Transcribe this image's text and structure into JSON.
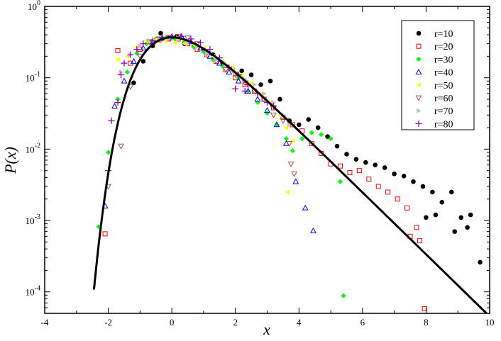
{
  "chart_data": {
    "type": "scatter",
    "title": "",
    "xlabel": "x",
    "ylabel": "P(x)",
    "xlim": [
      -4,
      10
    ],
    "ylim": [
      5e-05,
      1
    ],
    "yscale": "log",
    "grid": false,
    "legend_position": "top-right",
    "x_ticks": [
      -4,
      -2,
      0,
      2,
      4,
      6,
      8,
      10
    ],
    "x_tick_labels": [
      "-4",
      "-2",
      "0",
      "2",
      "4",
      "6",
      "8",
      "10"
    ],
    "y_ticks": [
      {
        "value": 1,
        "base": "10",
        "exp": "0"
      },
      {
        "value": 0.1,
        "base": "10",
        "exp": "-1"
      },
      {
        "value": 0.01,
        "base": "10",
        "exp": "-2"
      },
      {
        "value": 0.001,
        "base": "10",
        "exp": "-3"
      },
      {
        "value": 0.0001,
        "base": "10",
        "exp": "-4"
      }
    ],
    "series": [
      {
        "name": "r=10",
        "marker": "circle-filled",
        "color": "#000000",
        "points": [
          [
            -1.2,
            0.085
          ],
          [
            -0.9,
            0.17
          ],
          [
            -0.6,
            0.28
          ],
          [
            -0.35,
            0.42
          ],
          [
            -0.1,
            0.36
          ],
          [
            0.15,
            0.38
          ],
          [
            0.4,
            0.3
          ],
          [
            0.7,
            0.28
          ],
          [
            1.0,
            0.25
          ],
          [
            1.3,
            0.21
          ],
          [
            1.6,
            0.16
          ],
          [
            1.9,
            0.135
          ],
          [
            2.2,
            0.125
          ],
          [
            2.5,
            0.11
          ],
          [
            2.8,
            0.08
          ],
          [
            3.1,
            0.09
          ],
          [
            3.4,
            0.05
          ],
          [
            3.7,
            0.025
          ],
          [
            4.0,
            0.022
          ],
          [
            4.3,
            0.026
          ],
          [
            4.6,
            0.02
          ],
          [
            4.9,
            0.015
          ],
          [
            5.2,
            0.011
          ],
          [
            5.5,
            0.0085
          ],
          [
            5.8,
            0.0072
          ],
          [
            6.1,
            0.0065
          ],
          [
            6.4,
            0.006
          ],
          [
            6.7,
            0.0055
          ],
          [
            7.0,
            0.0045
          ],
          [
            7.3,
            0.0042
          ],
          [
            7.6,
            0.0035
          ],
          [
            7.9,
            0.003
          ],
          [
            8.2,
            0.0025
          ],
          [
            8.5,
            0.0018
          ],
          [
            8.8,
            0.0025
          ],
          [
            9.1,
            0.0011
          ],
          [
            9.4,
            0.0012
          ],
          [
            8.9,
            0.0007
          ],
          [
            9.3,
            0.0008
          ],
          [
            9.7,
            0.00026
          ],
          [
            8.0,
            0.0011
          ],
          [
            8.3,
            0.0012
          ]
        ]
      },
      {
        "name": "r=20",
        "marker": "square-open",
        "color": "#ff0000",
        "points": [
          [
            -2.1,
            0.00065
          ],
          [
            -1.7,
            0.24
          ],
          [
            -1.3,
            0.16
          ],
          [
            -1.0,
            0.25
          ],
          [
            -0.7,
            0.32
          ],
          [
            -0.4,
            0.34
          ],
          [
            -0.1,
            0.35
          ],
          [
            0.2,
            0.35
          ],
          [
            0.5,
            0.3
          ],
          [
            0.8,
            0.25
          ],
          [
            1.1,
            0.21
          ],
          [
            1.4,
            0.17
          ],
          [
            1.7,
            0.13
          ],
          [
            2.0,
            0.1
          ],
          [
            2.3,
            0.08
          ],
          [
            2.6,
            0.065
          ],
          [
            2.9,
            0.05
          ],
          [
            3.2,
            0.038
          ],
          [
            3.5,
            0.028
          ],
          [
            3.8,
            0.022
          ],
          [
            4.1,
            0.018
          ],
          [
            4.4,
            0.012
          ],
          [
            4.7,
            0.0087
          ],
          [
            5.0,
            0.0062
          ],
          [
            5.3,
            0.0058
          ],
          [
            5.6,
            0.0047
          ],
          [
            5.9,
            0.005
          ],
          [
            6.2,
            0.0038
          ],
          [
            6.5,
            0.003
          ],
          [
            6.8,
            0.0025
          ],
          [
            7.1,
            0.002
          ],
          [
            7.4,
            0.0015
          ],
          [
            7.7,
            0.0008
          ],
          [
            7.5,
            0.0006
          ],
          [
            7.8,
            0.00052
          ],
          [
            7.95,
            5.8e-05
          ]
        ]
      },
      {
        "name": "r=30",
        "marker": "diamond-filled",
        "color": "#00ff00",
        "points": [
          [
            -2.3,
            0.00082
          ],
          [
            -2.0,
            0.009
          ],
          [
            -1.7,
            0.05
          ],
          [
            -1.4,
            0.12
          ],
          [
            -1.1,
            0.22
          ],
          [
            -0.8,
            0.3
          ],
          [
            -0.5,
            0.35
          ],
          [
            -0.2,
            0.36
          ],
          [
            0.1,
            0.35
          ],
          [
            0.4,
            0.32
          ],
          [
            0.7,
            0.27
          ],
          [
            1.0,
            0.23
          ],
          [
            1.3,
            0.18
          ],
          [
            1.6,
            0.145
          ],
          [
            1.9,
            0.13
          ],
          [
            2.1,
            0.1
          ],
          [
            2.4,
            0.065
          ],
          [
            2.7,
            0.045
          ],
          [
            3.0,
            0.032
          ],
          [
            3.3,
            0.022
          ],
          [
            3.6,
            0.014
          ],
          [
            3.8,
            0.0095
          ],
          [
            4.1,
            0.014
          ],
          [
            4.4,
            0.017
          ],
          [
            4.7,
            0.016
          ],
          [
            5.0,
            0.014
          ],
          [
            5.3,
            0.0035
          ],
          [
            5.4,
            8.8e-05
          ]
        ]
      },
      {
        "name": "r=40",
        "marker": "triangle-up-open",
        "color": "#0000ff",
        "points": [
          [
            -2.1,
            0.0016
          ],
          [
            -1.8,
            0.04
          ],
          [
            -1.5,
            0.09
          ],
          [
            -1.2,
            0.17
          ],
          [
            -0.9,
            0.26
          ],
          [
            -0.6,
            0.32
          ],
          [
            -0.3,
            0.36
          ],
          [
            0.0,
            0.38
          ],
          [
            0.3,
            0.38
          ],
          [
            0.6,
            0.32
          ],
          [
            0.9,
            0.26
          ],
          [
            1.2,
            0.2
          ],
          [
            1.5,
            0.16
          ],
          [
            1.8,
            0.12
          ],
          [
            2.1,
            0.09
          ],
          [
            2.4,
            0.065
          ],
          [
            2.7,
            0.05
          ],
          [
            3.0,
            0.035
          ],
          [
            3.3,
            0.022
          ],
          [
            3.6,
            0.012
          ],
          [
            3.9,
            0.0035
          ],
          [
            4.2,
            0.0015
          ],
          [
            4.45,
            0.00072
          ]
        ]
      },
      {
        "name": "r=50",
        "marker": "triangle-left-filled",
        "color": "#ffff00",
        "points": [
          [
            -1.7,
            0.18
          ],
          [
            -1.4,
            0.2
          ],
          [
            -1.1,
            0.27
          ],
          [
            -0.8,
            0.33
          ],
          [
            -0.5,
            0.34
          ],
          [
            -0.2,
            0.33
          ],
          [
            0.1,
            0.31
          ],
          [
            0.4,
            0.3
          ],
          [
            0.7,
            0.29
          ],
          [
            1.0,
            0.26
          ],
          [
            1.3,
            0.2
          ],
          [
            1.6,
            0.17
          ],
          [
            1.9,
            0.14
          ],
          [
            2.2,
            0.11
          ],
          [
            2.5,
            0.085
          ],
          [
            2.8,
            0.06
          ],
          [
            3.1,
            0.045
          ],
          [
            3.4,
            0.03
          ],
          [
            3.6,
            0.02
          ],
          [
            3.8,
            0.013
          ],
          [
            3.65,
            0.0025
          ]
        ]
      },
      {
        "name": "r=60",
        "marker": "triangle-down-open",
        "color": "#a85050",
        "points": [
          [
            -2.0,
            0.003
          ],
          [
            -1.6,
            0.011
          ],
          [
            -1.3,
            0.075
          ],
          [
            -1.0,
            0.2
          ],
          [
            -0.7,
            0.32
          ],
          [
            -0.4,
            0.35
          ],
          [
            -0.1,
            0.37
          ],
          [
            0.2,
            0.38
          ],
          [
            0.5,
            0.36
          ],
          [
            0.8,
            0.3
          ],
          [
            1.1,
            0.22
          ],
          [
            1.4,
            0.17
          ],
          [
            1.7,
            0.13
          ],
          [
            2.0,
            0.11
          ],
          [
            2.3,
            0.085
          ],
          [
            2.6,
            0.065
          ],
          [
            2.9,
            0.05
          ],
          [
            3.2,
            0.03
          ],
          [
            3.5,
            0.025
          ],
          [
            3.7,
            0.012
          ],
          [
            3.75,
            0.0062
          ],
          [
            3.85,
            0.0045
          ]
        ]
      },
      {
        "name": "r=70",
        "marker": "triangle-right-filled",
        "color": "#c0c0c0",
        "points": [
          [
            -1.6,
            0.12
          ],
          [
            -1.3,
            0.21
          ],
          [
            -1.0,
            0.28
          ],
          [
            -0.7,
            0.33
          ],
          [
            -0.4,
            0.34
          ],
          [
            -0.1,
            0.35
          ],
          [
            0.2,
            0.36
          ],
          [
            0.5,
            0.31
          ],
          [
            0.8,
            0.27
          ],
          [
            1.1,
            0.22
          ],
          [
            1.4,
            0.18
          ],
          [
            1.7,
            0.15
          ],
          [
            2.0,
            0.12
          ],
          [
            2.3,
            0.095
          ],
          [
            2.6,
            0.08
          ],
          [
            2.9,
            0.06
          ],
          [
            3.2,
            0.045
          ],
          [
            3.5,
            0.03
          ],
          [
            3.7,
            0.022
          ]
        ]
      },
      {
        "name": "r=80",
        "marker": "plus",
        "color": "#9900cc",
        "points": [
          [
            -2.0,
            0.005
          ],
          [
            -1.9,
            0.025
          ],
          [
            -1.7,
            0.045
          ],
          [
            -1.6,
            0.11
          ],
          [
            -1.5,
            0.16
          ],
          [
            -1.3,
            0.21
          ],
          [
            -1.1,
            0.25
          ],
          [
            -0.9,
            0.3
          ],
          [
            -0.6,
            0.33
          ],
          [
            -0.3,
            0.36
          ],
          [
            0.0,
            0.37
          ],
          [
            0.3,
            0.38
          ],
          [
            0.6,
            0.35
          ],
          [
            0.9,
            0.31
          ],
          [
            1.2,
            0.25
          ],
          [
            1.5,
            0.19
          ],
          [
            1.8,
            0.14
          ],
          [
            2.1,
            0.11
          ],
          [
            2.4,
            0.08
          ],
          [
            2.7,
            0.06
          ],
          [
            3.0,
            0.045
          ],
          [
            3.2,
            0.04
          ],
          [
            2.0,
            0.07
          ],
          [
            2.3,
            0.065
          ]
        ]
      }
    ],
    "fit_curve": {
      "name": "fit",
      "color": "#000000"
    }
  }
}
